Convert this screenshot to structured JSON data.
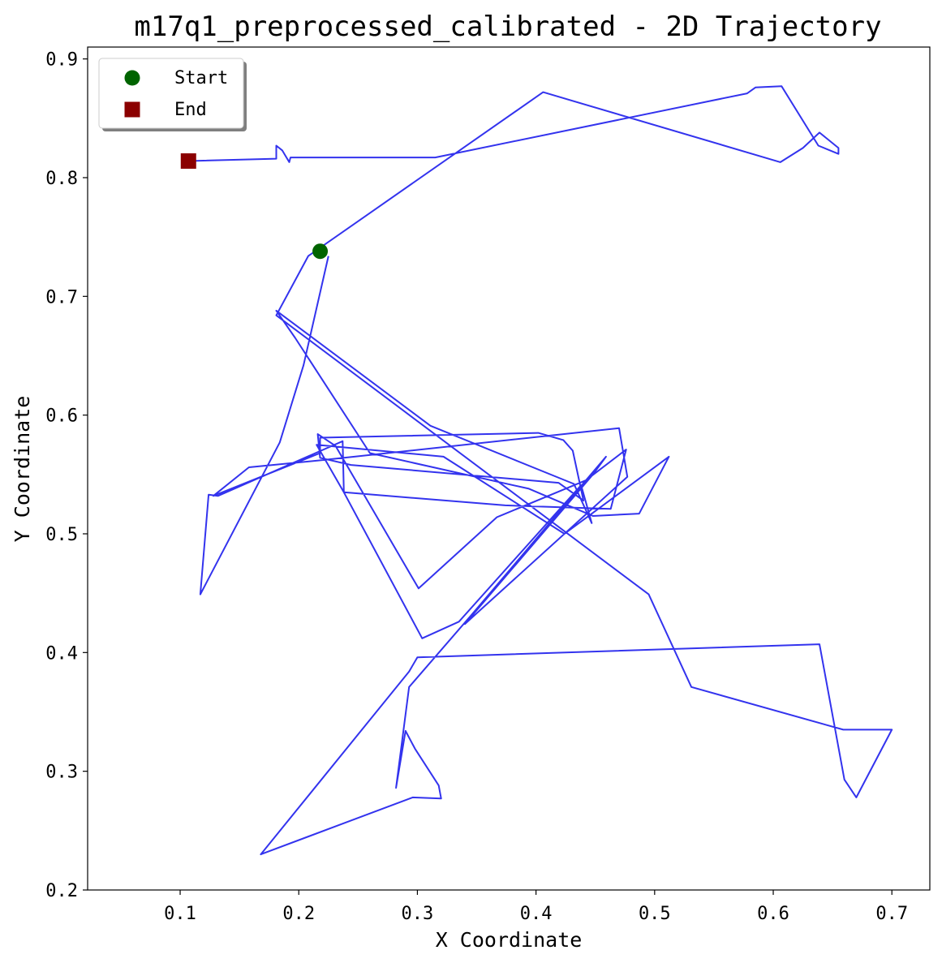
{
  "chart_data": {
    "type": "line",
    "title": "m17q1_preprocessed_calibrated - 2D Trajectory",
    "xlabel": "X Coordinate",
    "ylabel": "Y Coordinate",
    "xlim": [
      0.022,
      0.732
    ],
    "ylim": [
      0.2,
      0.91
    ],
    "xticks": [
      0.1,
      0.2,
      0.3,
      0.4,
      0.5,
      0.6,
      0.7
    ],
    "xtick_labels": [
      "0.1",
      "0.2",
      "0.3",
      "0.4",
      "0.5",
      "0.6",
      "0.7"
    ],
    "yticks": [
      0.2,
      0.3,
      0.4,
      0.5,
      0.6,
      0.7,
      0.8,
      0.9
    ],
    "ytick_labels": [
      "0.2",
      "0.3",
      "0.4",
      "0.5",
      "0.6",
      "0.7",
      "0.8",
      "0.9"
    ],
    "grid": false,
    "legend_position": "top-left",
    "legend": [
      {
        "label": "Start",
        "marker": "circle",
        "color": "#006400"
      },
      {
        "label": "End",
        "marker": "square",
        "color": "#8b0000"
      }
    ],
    "series": [
      {
        "color": "#3333ee",
        "points": [
          [
            0.225,
            0.734
          ],
          [
            0.204,
            0.642
          ],
          [
            0.184,
            0.577
          ],
          [
            0.117,
            0.449
          ],
          [
            0.124,
            0.533
          ],
          [
            0.132,
            0.532
          ],
          [
            0.237,
            0.578
          ],
          [
            0.238,
            0.535
          ],
          [
            0.304,
            0.412
          ],
          [
            0.335,
            0.426
          ],
          [
            0.438,
            0.541
          ],
          [
            0.447,
            0.509
          ],
          [
            0.432,
            0.542
          ],
          [
            0.311,
            0.591
          ],
          [
            0.181,
            0.688
          ],
          [
            0.197,
            0.665
          ],
          [
            0.26,
            0.568
          ],
          [
            0.394,
            0.538
          ],
          [
            0.448,
            0.515
          ],
          [
            0.487,
            0.517
          ],
          [
            0.512,
            0.565
          ],
          [
            0.424,
            0.5
          ],
          [
            0.322,
            0.565
          ],
          [
            0.215,
            0.575
          ],
          [
            0.238,
            0.535
          ],
          [
            0.374,
            0.524
          ],
          [
            0.463,
            0.521
          ],
          [
            0.476,
            0.571
          ],
          [
            0.442,
            0.545
          ],
          [
            0.367,
            0.514
          ],
          [
            0.301,
            0.454
          ],
          [
            0.231,
            0.574
          ],
          [
            0.216,
            0.584
          ],
          [
            0.218,
            0.564
          ],
          [
            0.244,
            0.558
          ],
          [
            0.419,
            0.543
          ],
          [
            0.44,
            0.528
          ],
          [
            0.431,
            0.57
          ],
          [
            0.423,
            0.579
          ],
          [
            0.402,
            0.585
          ],
          [
            0.218,
            0.581
          ],
          [
            0.218,
            0.568
          ],
          [
            0.128,
            0.532
          ],
          [
            0.158,
            0.556
          ],
          [
            0.219,
            0.562
          ],
          [
            0.47,
            0.589
          ],
          [
            0.477,
            0.548
          ],
          [
            0.34,
            0.424
          ],
          [
            0.448,
            0.55
          ],
          [
            0.459,
            0.565
          ],
          [
            0.345,
            0.431
          ],
          [
            0.293,
            0.371
          ],
          [
            0.282,
            0.286
          ],
          [
            0.29,
            0.334
          ],
          [
            0.298,
            0.319
          ],
          [
            0.318,
            0.288
          ],
          [
            0.32,
            0.277
          ],
          [
            0.296,
            0.278
          ],
          [
            0.168,
            0.23
          ],
          [
            0.293,
            0.384
          ],
          [
            0.3,
            0.396
          ],
          [
            0.639,
            0.407
          ],
          [
            0.66,
            0.293
          ],
          [
            0.67,
            0.278
          ],
          [
            0.7,
            0.335
          ],
          [
            0.659,
            0.335
          ],
          [
            0.531,
            0.371
          ],
          [
            0.495,
            0.449
          ],
          [
            0.181,
            0.684
          ],
          [
            0.208,
            0.734
          ],
          [
            0.406,
            0.872
          ],
          [
            0.606,
            0.813
          ],
          [
            0.625,
            0.825
          ],
          [
            0.639,
            0.838
          ],
          [
            0.655,
            0.825
          ],
          [
            0.655,
            0.82
          ],
          [
            0.638,
            0.827
          ],
          [
            0.607,
            0.877
          ],
          [
            0.585,
            0.876
          ],
          [
            0.578,
            0.871
          ],
          [
            0.315,
            0.817
          ],
          [
            0.193,
            0.817
          ],
          [
            0.192,
            0.813
          ],
          [
            0.186,
            0.823
          ],
          [
            0.181,
            0.827
          ],
          [
            0.181,
            0.816
          ],
          [
            0.107,
            0.814
          ]
        ]
      }
    ],
    "start_point": [
      0.218,
      0.738
    ],
    "end_point": [
      0.107,
      0.814
    ]
  }
}
